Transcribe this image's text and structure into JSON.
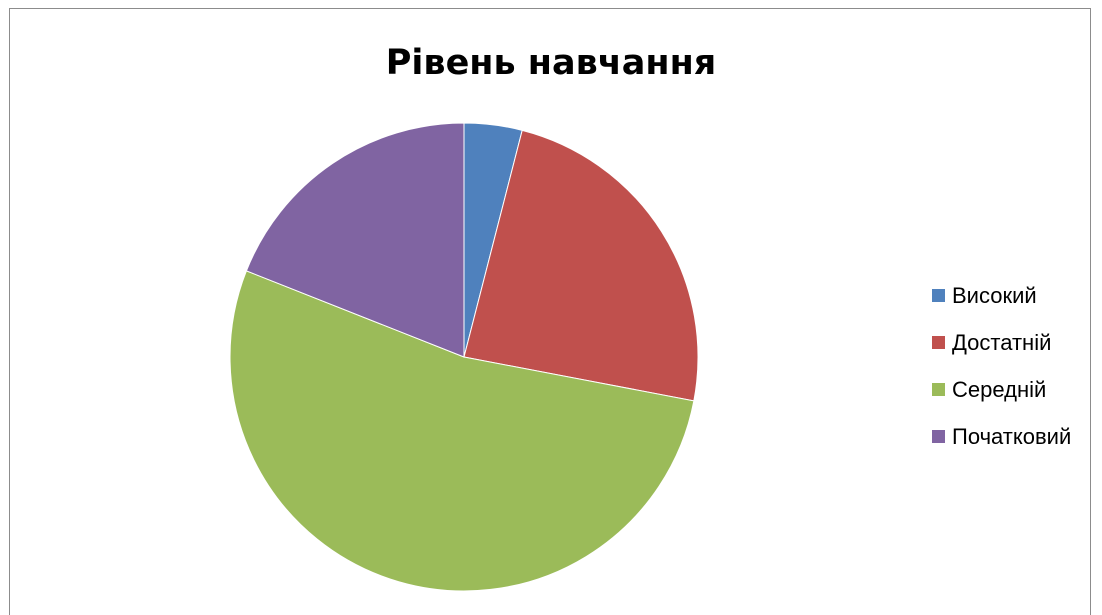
{
  "chart_data": {
    "type": "pie",
    "title": "Рівень навчання",
    "categories": [
      "Високий",
      "Достатній",
      "Середній",
      "Початковий"
    ],
    "values": [
      4,
      24,
      53,
      19
    ],
    "colors": [
      "#4f81bd",
      "#c0504d",
      "#9bbb59",
      "#8064a2"
    ],
    "legend_position": "right",
    "start_angle": "top, clockwise"
  }
}
